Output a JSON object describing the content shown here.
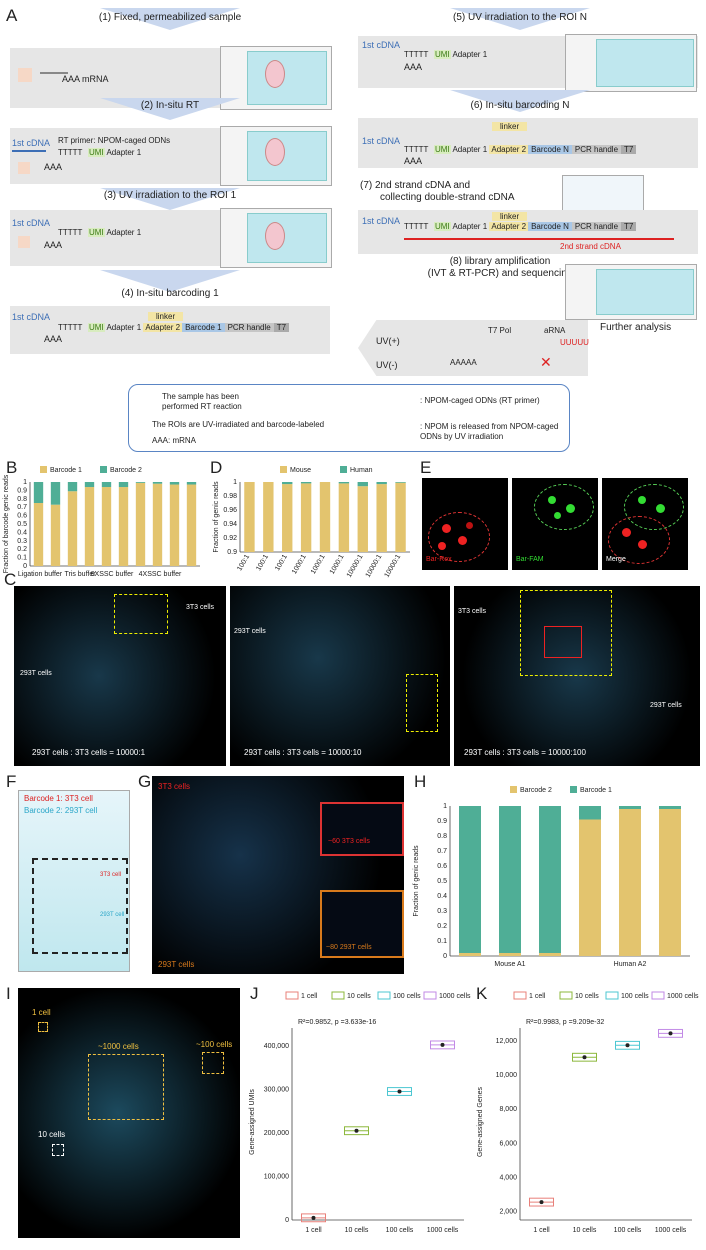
{
  "panels": {
    "A": "A",
    "B": "B",
    "C": "C",
    "D": "D",
    "E": "E",
    "F": "F",
    "G": "G",
    "H": "H",
    "I": "I",
    "J": "J",
    "K": "K"
  },
  "panelA": {
    "steps": {
      "s1": "(1) Fixed, permeabilized sample",
      "s2": "(2) In-situ RT",
      "s3": "(3) UV irradiation to the ROI 1",
      "s4": "(4) In-situ barcoding 1",
      "s5": "(5) UV irradiation to the ROI N",
      "s6": "(6) In-situ barcoding N",
      "s7a": "(7) 2nd strand cDNA and",
      "s7b": "collecting double-strand cDNA",
      "s8a": "(8) library amplification",
      "s8b": "(IVT & RT-PCR) and sequencing"
    },
    "mrna": "AAA  mRNA",
    "aaa": "AAA",
    "tttt": "TTTTT",
    "first_cdna": "1st cDNA",
    "rt_primer": "RT primer: NPOM-caged ODNs",
    "umi": "UMI",
    "adapter1": "Adapter 1",
    "adapter2": "Adapter 2",
    "linker": "linker",
    "barcode1": "Barcode 1",
    "barcodeN": "Barcode N",
    "pcr": "PCR handle",
    "t7": "T7",
    "second_strand": "2nd strand cDNA",
    "further": "Further analysis",
    "t7pol": "T7 Pol",
    "arna": "aRNA",
    "uvplus": "UV(+)",
    "uvminus": "UV(-)",
    "uuuu": "UUUUU",
    "aaaaa": "AAAAA",
    "legend": {
      "l1a": "The sample has been",
      "l1b": "performed RT reaction",
      "l2": "The ROIs are UV-irradiated and barcode-labeled",
      "l3": "AAA: mRNA",
      "r1": ": NPOM-caged ODNs (RT primer)",
      "r2a": ": NPOM is released from NPOM-caged",
      "r2b": "ODNs by UV irradiation"
    }
  },
  "panelB": {
    "legend": [
      "Barcode 1",
      "Barcode 2"
    ],
    "ylabel": "Fraction of barcode genic reads",
    "groups": [
      "Ligation buffer",
      "Tris buffer",
      "6XSSC buffer",
      "4XSSC buffer"
    ]
  },
  "panelD": {
    "legend": [
      "Mouse",
      "Human"
    ],
    "ylabel": "Fraction of genic reads"
  },
  "panelE": {
    "labels": [
      "Bar-Rox",
      "Bar-FAM",
      "Merge"
    ]
  },
  "panelC": {
    "captions": [
      "293T cells : 3T3 cells = 10000:1",
      "293T cells : 3T3 cells = 10000:10",
      "293T cells : 3T3 cells = 10000:100"
    ],
    "cell293": "293T cells",
    "cell3t3": "3T3 cells"
  },
  "panelF": {
    "bc1": "Barcode 1: 3T3 cell",
    "bc2": "Barcode 2: 293T cell",
    "l3t3": "3T3 cell",
    "l293": "293T cell"
  },
  "panelG": {
    "top": "3T3 cells",
    "bottom": "293T cells",
    "inset1": "~60 3T3 cells",
    "inset2": "~80 293T cells"
  },
  "panelH": {
    "legend": [
      "Barcode 2",
      "Barcode 1"
    ],
    "ylabel": "Fraction of genic reads",
    "xlabels": [
      "Mouse A1",
      "Human A2"
    ]
  },
  "panelI": {
    "l1": "1 cell",
    "l10": "10 cells",
    "l100": "~100 cells",
    "l1000": "~1000 cells"
  },
  "panelJ": {
    "legend": [
      "1 cell",
      "10 cells",
      "100 cells",
      "1000 cells"
    ],
    "stat": "R²=0.9852, p =3.633e-16",
    "ylabel": "Gene-assigned UMIs"
  },
  "panelK": {
    "legend": [
      "1 cell",
      "10 cells",
      "100 cells",
      "1000 cells"
    ],
    "stat": "R²=0.9983, p =9.209e-32",
    "ylabel": "Gene-assigned Genes"
  },
  "colors": {
    "barcode1": "#e3c46e",
    "barcode2": "#4fae96",
    "cyan": "#8fd8e6",
    "red": "#e22",
    "green": "#39d13a"
  },
  "chart_data": [
    {
      "type": "bar",
      "id": "B",
      "categories": [
        "Ligation buffer",
        "",
        "Tris buffer",
        "",
        "6XSSC buffer",
        "",
        "4XSSC buffer",
        "",
        "",
        ""
      ],
      "series": [
        {
          "name": "Barcode 1",
          "values": [
            0.75,
            0.73,
            0.89,
            0.94,
            0.94,
            0.94,
            0.99,
            0.98,
            0.97,
            0.97
          ]
        },
        {
          "name": "Barcode 2",
          "values": [
            0.25,
            0.27,
            0.11,
            0.06,
            0.06,
            0.06,
            0.01,
            0.02,
            0.03,
            0.03
          ]
        }
      ],
      "ylim": [
        0,
        1
      ],
      "yticks": [
        0,
        0.1,
        0.2,
        0.3,
        0.4,
        0.5,
        0.6,
        0.7,
        0.8,
        0.9,
        1
      ]
    },
    {
      "type": "bar",
      "id": "D",
      "categories": [
        "100:1",
        "100:1",
        "100:1",
        "1000:1",
        "1000:1",
        "1000:1",
        "10000:1",
        "10000:1",
        "10000:1"
      ],
      "series": [
        {
          "name": "Mouse",
          "values": [
            1.0,
            1.0,
            0.997,
            0.998,
            1.0,
            0.998,
            0.994,
            0.997,
            0.999
          ]
        },
        {
          "name": "Human",
          "values": [
            0.0,
            0.0,
            0.003,
            0.002,
            0.0,
            0.002,
            0.006,
            0.003,
            0.001
          ]
        }
      ],
      "ylim": [
        0.9,
        1
      ],
      "yticks": [
        0.9,
        0.92,
        0.94,
        0.96,
        0.98,
        1
      ]
    },
    {
      "type": "bar",
      "id": "H",
      "categories": [
        "",
        "Mouse A1",
        "",
        "",
        "Human A2",
        ""
      ],
      "series": [
        {
          "name": "Barcode 2",
          "values": [
            0.02,
            0.02,
            0.02,
            0.91,
            0.98,
            0.98
          ]
        },
        {
          "name": "Barcode 1",
          "values": [
            0.98,
            0.98,
            0.98,
            0.09,
            0.02,
            0.02
          ]
        }
      ],
      "ylim": [
        0,
        1
      ],
      "yticks": [
        0,
        0.1,
        0.2,
        0.3,
        0.4,
        0.5,
        0.6,
        0.7,
        0.8,
        0.9,
        1
      ]
    },
    {
      "type": "scatter",
      "id": "J",
      "categories": [
        "1 cell",
        "10 cells",
        "100 cells",
        "1000 cells"
      ],
      "medians": [
        5000,
        205000,
        295000,
        402000
      ],
      "ylim": [
        0,
        450000
      ],
      "yticks": [
        0,
        100000,
        200000,
        300000,
        400000
      ],
      "ytick_labels": [
        "0",
        "100,000",
        "200,000",
        "300,000",
        "400,000"
      ]
    },
    {
      "type": "scatter",
      "id": "K",
      "categories": [
        "1 cell",
        "10 cells",
        "100 cells",
        "1000 cells"
      ],
      "medians": [
        2550,
        11050,
        11750,
        12450
      ],
      "ylim": [
        1500,
        13000
      ],
      "yticks": [
        2000,
        4000,
        6000,
        8000,
        10000,
        12000
      ],
      "ytick_labels": [
        "2,000",
        "4,000",
        "6,000",
        "8,000",
        "10,000",
        "12,000"
      ]
    }
  ]
}
